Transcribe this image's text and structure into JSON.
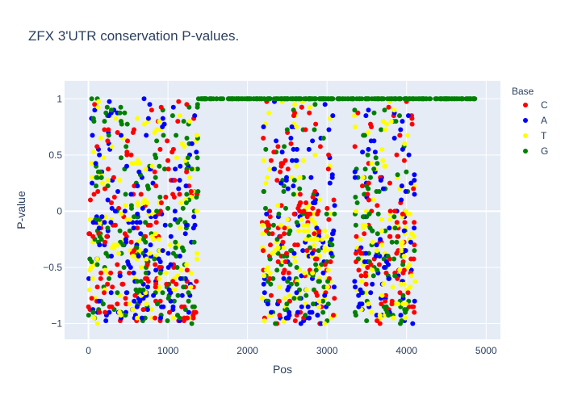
{
  "chart_data": {
    "type": "scatter",
    "title": "ZFX 3'UTR conservation P-values.",
    "xlabel": "Pos",
    "ylabel": "P-value",
    "xlim": [
      -300,
      5180
    ],
    "ylim": [
      -1.14,
      1.16
    ],
    "x_ticks": [
      0,
      1000,
      2000,
      3000,
      4000,
      5000
    ],
    "y_ticks": [
      -1,
      -0.5,
      0,
      0.5,
      1
    ],
    "grid": true,
    "legend": {
      "title": "Base",
      "placement": "top-right"
    },
    "series": [
      {
        "name": "C",
        "color": "#ff0000"
      },
      {
        "name": "A",
        "color": "#0000ff"
      },
      {
        "name": "T",
        "color": "#ffff00"
      },
      {
        "name": "G",
        "color": "#008000"
      }
    ],
    "regions": [
      {
        "x": [
          0,
          1380
        ],
        "y": [
          -1.0,
          1.0
        ]
      },
      {
        "x": [
          2180,
          3100
        ],
        "y": [
          -1.0,
          1.0
        ]
      },
      {
        "x": [
          3340,
          4110
        ],
        "y": [
          -1.0,
          1.0
        ]
      },
      {
        "x": [
          1380,
          4880
        ],
        "y": [
          1.0,
          1.0
        ]
      }
    ]
  }
}
